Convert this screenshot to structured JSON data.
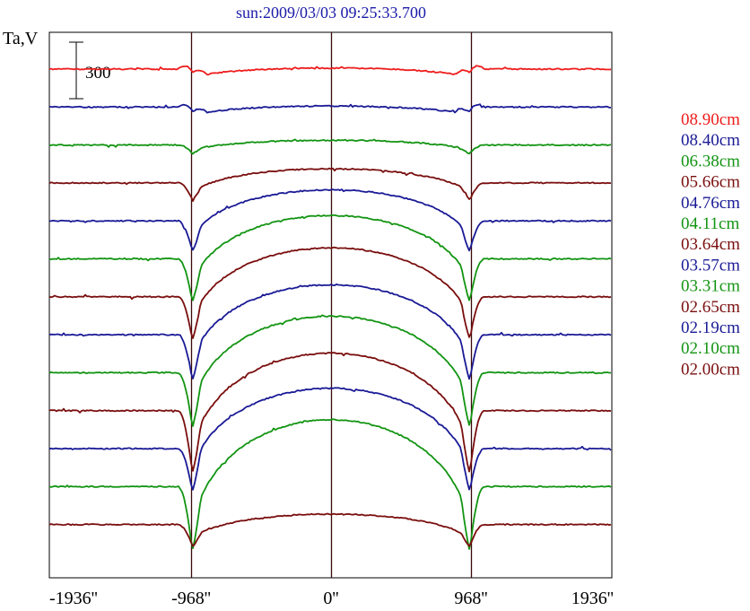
{
  "chart_data": {
    "type": "line",
    "title": "sun:2009/03/03 09:25:33.700",
    "ylabel": "Ta,V",
    "scale_bar_label": "300",
    "xlim": [
      -2080,
      2080
    ],
    "x_ticks": [
      {
        "value": -1936,
        "label": "-1936''"
      },
      {
        "value": -968,
        "label": "-968''"
      },
      {
        "value": 0,
        "label": "0''"
      },
      {
        "value": 968,
        "label": "968''"
      },
      {
        "value": 1936,
        "label": "1936''"
      }
    ],
    "vertical_lines": [
      -968,
      0,
      968
    ],
    "colors": {
      "red": "#ee1c1c",
      "blue": "#1a1a96",
      "green": "#129412",
      "brown": "#7a0e0e"
    },
    "series": [
      {
        "name": "08.90cm",
        "color": "#ee1c1c",
        "limb_dip": -60,
        "center_rise": 5,
        "edge_bump": 45
      },
      {
        "name": "08.40cm",
        "color": "#1a1a96",
        "limb_dip": -60,
        "center_rise": 5,
        "edge_bump": 40
      },
      {
        "name": "06.38cm",
        "color": "#129412",
        "limb_dip": -45,
        "center_rise": 25,
        "edge_bump": 0
      },
      {
        "name": "05.66cm",
        "color": "#7a0e0e",
        "limb_dip": -90,
        "center_rise": 75,
        "edge_bump": 0
      },
      {
        "name": "04.76cm",
        "color": "#1a1a96",
        "limb_dip": -160,
        "center_rise": 165,
        "edge_bump": 0
      },
      {
        "name": "04.11cm",
        "color": "#129412",
        "limb_dip": -225,
        "center_rise": 230,
        "edge_bump": 0
      },
      {
        "name": "03.64cm",
        "color": "#7a0e0e",
        "limb_dip": -225,
        "center_rise": 260,
        "edge_bump": 0
      },
      {
        "name": "03.57cm",
        "color": "#1a1a96",
        "limb_dip": -240,
        "center_rise": 265,
        "edge_bump": 0
      },
      {
        "name": "03.31cm",
        "color": "#129412",
        "limb_dip": -290,
        "center_rise": 300,
        "edge_bump": 0
      },
      {
        "name": "02.65cm",
        "color": "#7a0e0e",
        "limb_dip": -330,
        "center_rise": 305,
        "edge_bump": 0
      },
      {
        "name": "02.19cm",
        "color": "#1a1a96",
        "limb_dip": -225,
        "center_rise": 320,
        "edge_bump": 0
      },
      {
        "name": "02.10cm",
        "color": "#129412",
        "limb_dip": -340,
        "center_rise": 355,
        "edge_bump": 0
      },
      {
        "name": "02.00cm",
        "color": "#7a0e0e",
        "limb_dip": -115,
        "center_rise": 55,
        "edge_bump": 0
      }
    ]
  }
}
